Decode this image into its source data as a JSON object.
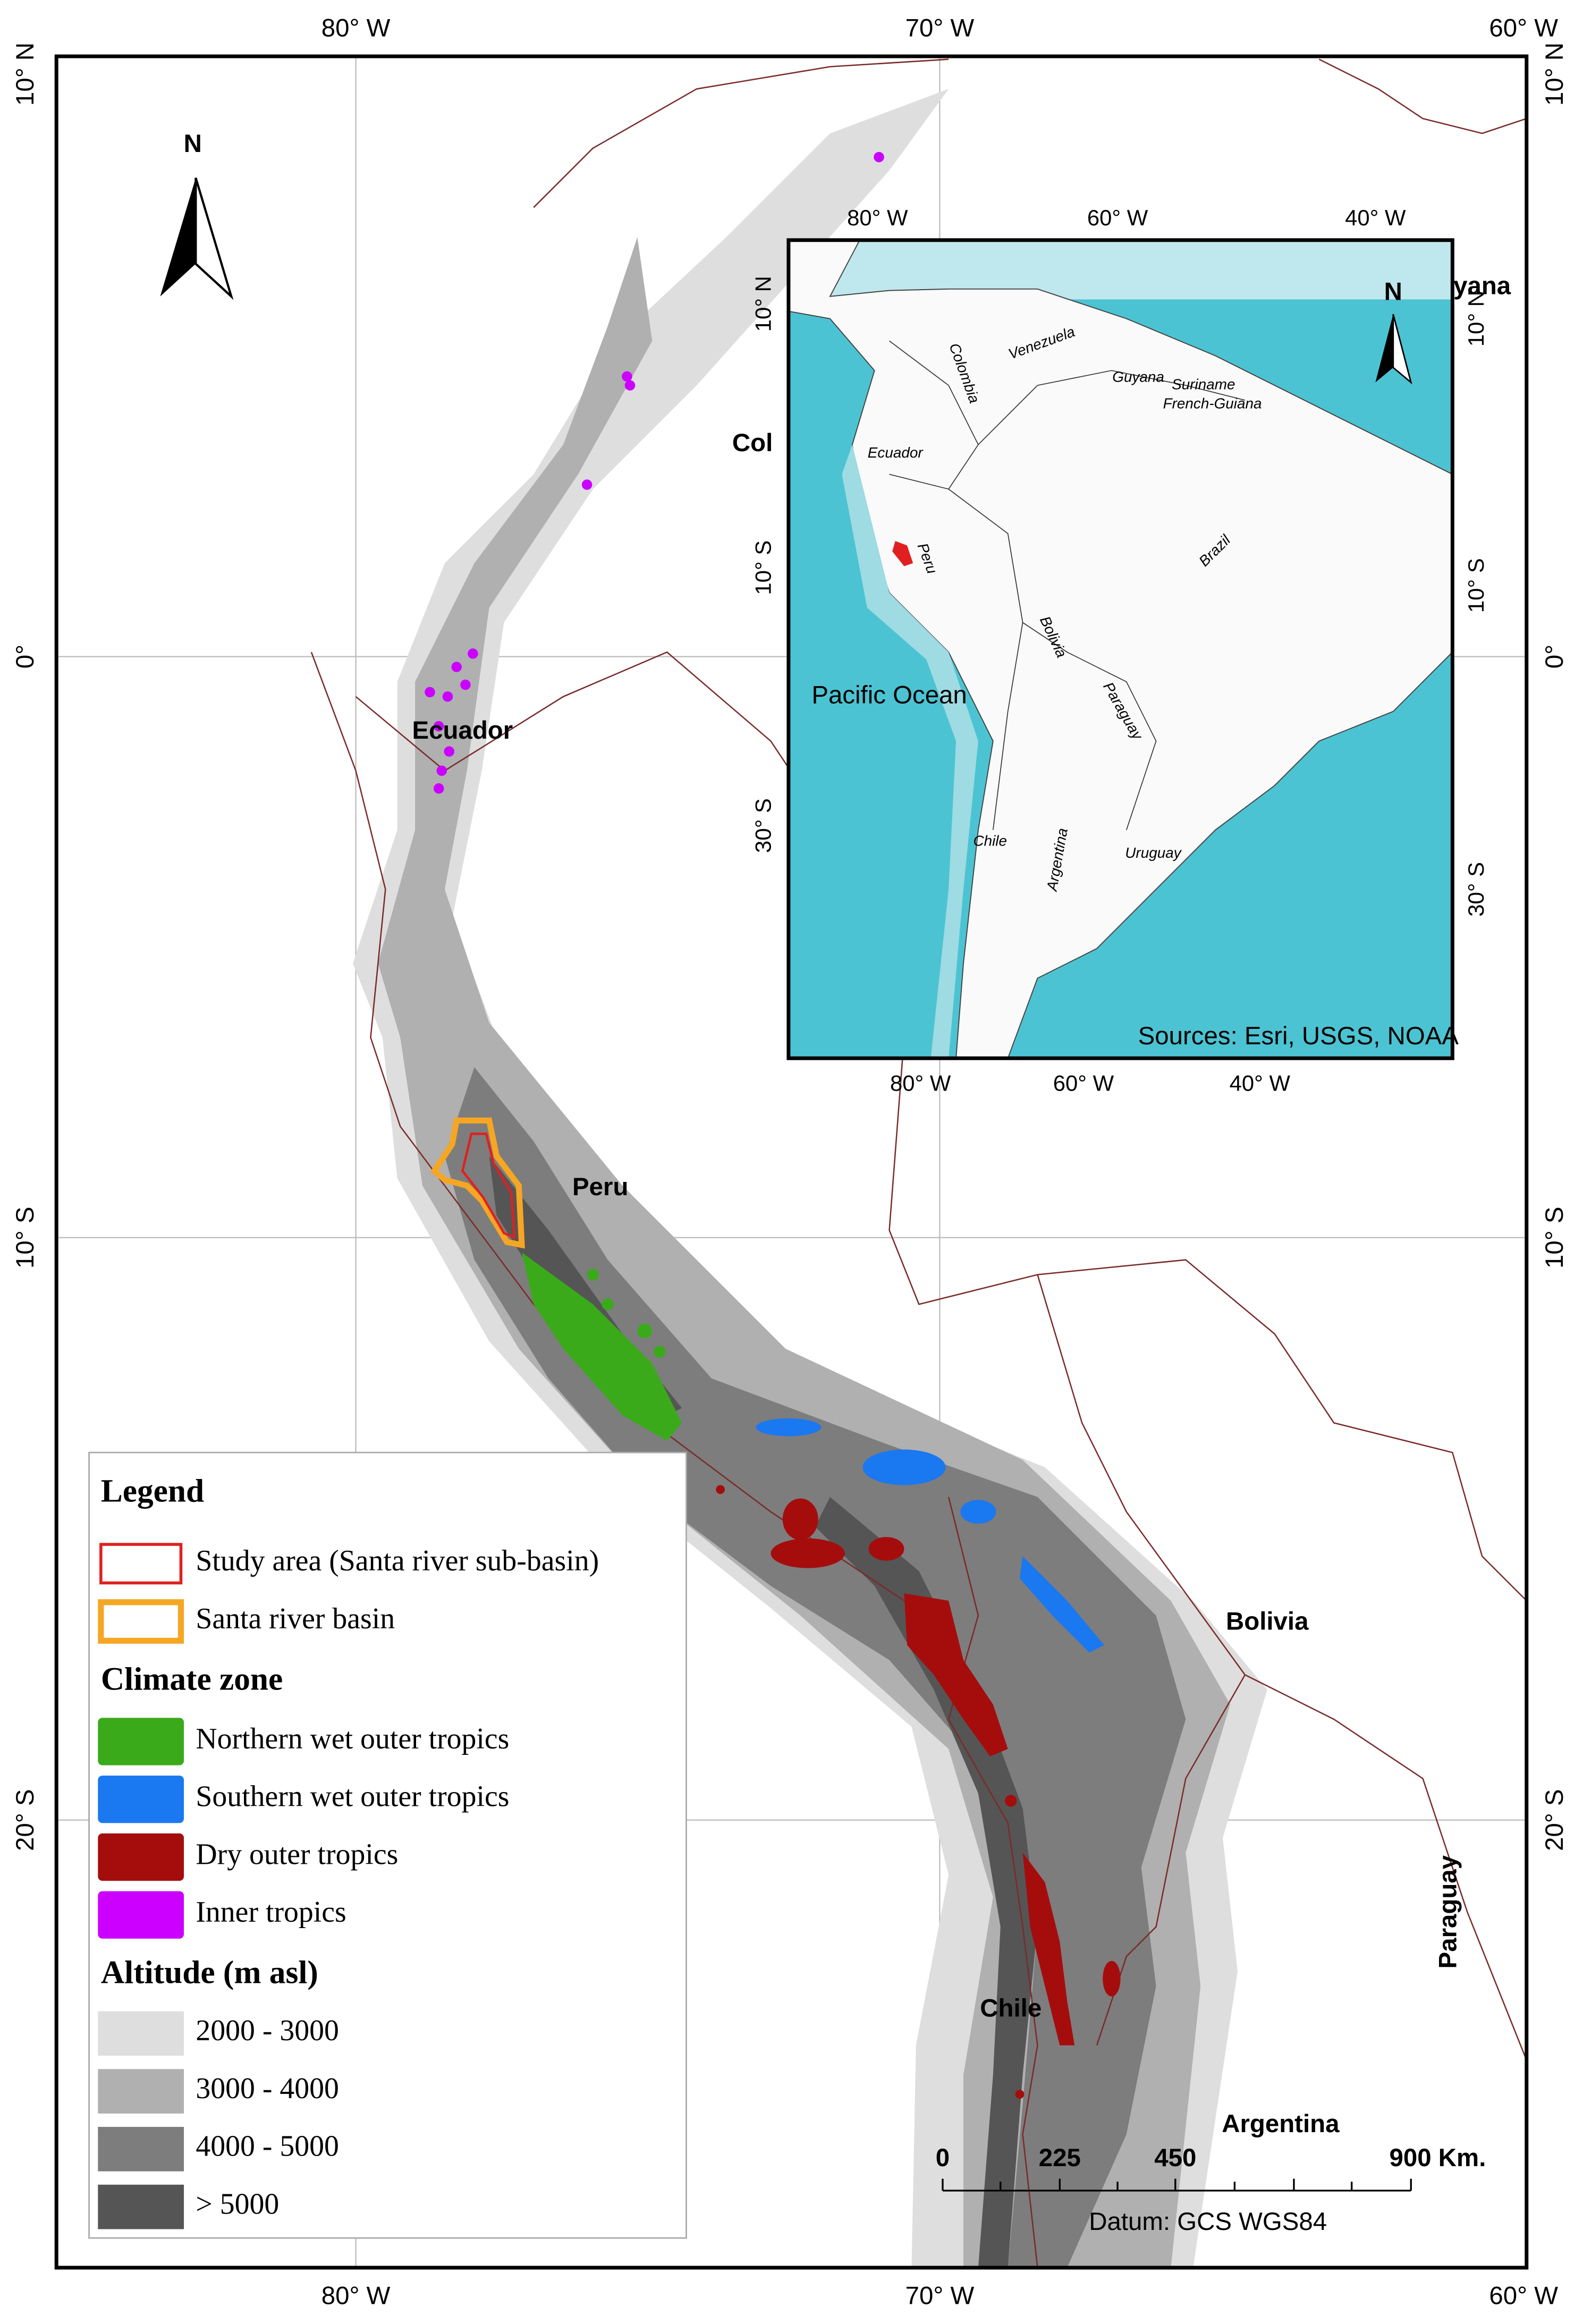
{
  "map": {
    "axes": {
      "top": [
        "80° W",
        "70° W",
        "60° W"
      ],
      "bottom": [
        "80° W",
        "70° W",
        "60° W"
      ],
      "left": [
        "10° N",
        "0°",
        "10° S",
        "20° S"
      ],
      "right": [
        "10° N",
        "0°",
        "10° S",
        "20° S"
      ]
    },
    "north": "N",
    "labels": [
      "Col",
      "Ecuador",
      "Peru",
      "Bolivia",
      "Paraguay",
      "Chile",
      "Argentina"
    ],
    "scale_bar": {
      "ticks": [
        "0",
        "225",
        "450",
        "900 Km."
      ],
      "datum": "Datum: GCS WGS84"
    }
  },
  "inset": {
    "top_axis": [
      "80° W",
      "60° W",
      "40° W"
    ],
    "bottom_axis": [
      "80° W",
      "60° W",
      "40° W"
    ],
    "left_axis": [
      "10° N",
      "10° S",
      "30° S"
    ],
    "right_axis": [
      "10° N",
      "10° S",
      "30° S"
    ],
    "north": "N",
    "countries": [
      "Venezuela",
      "Colombia",
      "Guyana",
      "Suriname",
      "French-Guiana",
      "Ecuador",
      "Peru",
      "Brazil",
      "Bolivia",
      "Paraguay",
      "Chile",
      "Argentina",
      "Uruguay"
    ],
    "clipped_label": "yana",
    "ocean": "Pacific Ocean",
    "sources": "Sources: Esri, USGS, NOAA"
  },
  "legend": {
    "title": "Legend",
    "boundaries": [
      "Study area (Santa river sub-basin)",
      "Santa river basin"
    ],
    "climate_title": "Climate zone",
    "climate": [
      "Northern wet outer tropics",
      "Southern wet outer tropics",
      "Dry outer tropics",
      "Inner tropics"
    ],
    "altitude_title": "Altitude (m asl)",
    "altitude": [
      "2000 - 3000",
      "3000 - 4000",
      "4000 - 5000",
      "> 5000"
    ]
  }
}
